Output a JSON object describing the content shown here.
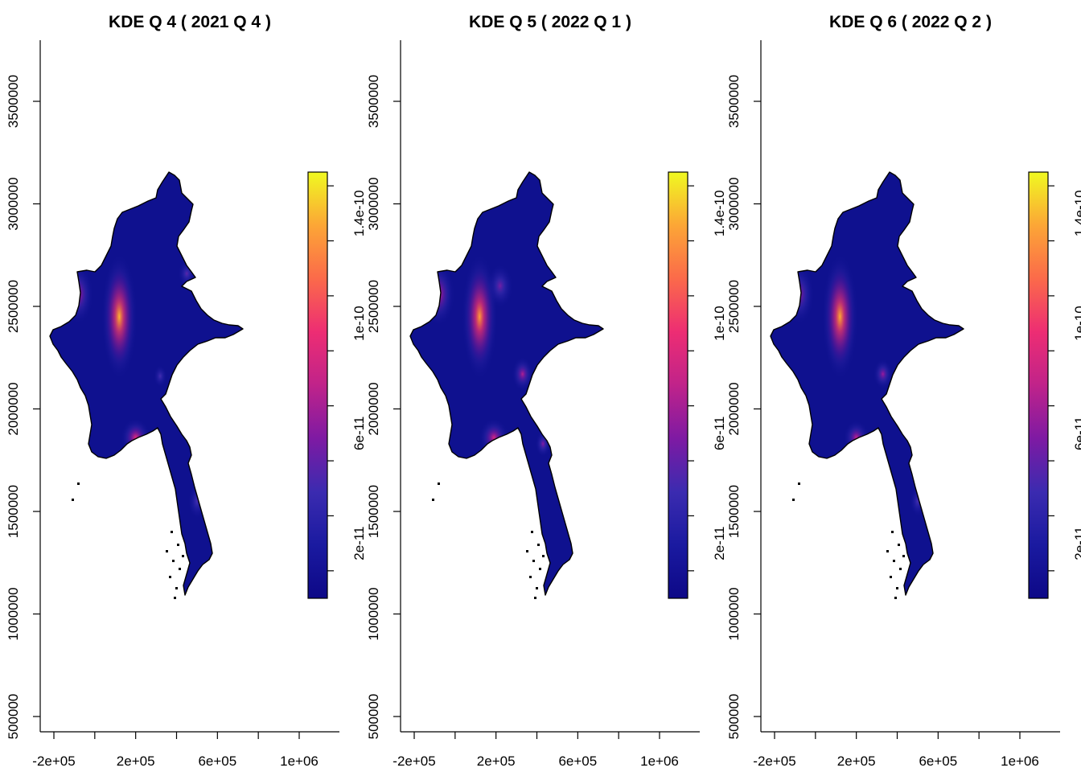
{
  "panels": [
    {
      "title": "KDE Q 4 ( 2021 Q 4 )",
      "hotspots": [
        {
          "label": "central",
          "x": 0.12,
          "y": 2450000,
          "rx": 0.085,
          "ry": 300000,
          "level": 1.0
        },
        {
          "label": "north-west",
          "x": -0.08,
          "y": 2560000,
          "rx": 0.07,
          "ry": 140000,
          "level": 0.45
        },
        {
          "label": "delta",
          "x": 0.2,
          "y": 1860000,
          "rx": 0.07,
          "ry": 90000,
          "level": 0.6
        },
        {
          "label": "east",
          "x": 0.45,
          "y": 2660000,
          "rx": 0.04,
          "ry": 60000,
          "level": 0.25
        },
        {
          "label": "mid",
          "x": 0.32,
          "y": 2160000,
          "rx": 0.03,
          "ry": 50000,
          "level": 0.2
        },
        {
          "label": "south",
          "x": 0.5,
          "y": 1550000,
          "rx": 0.04,
          "ry": 80000,
          "level": 0.2
        }
      ]
    },
    {
      "title": "KDE Q 5 ( 2022 Q 1 )",
      "hotspots": [
        {
          "label": "central",
          "x": 0.12,
          "y": 2450000,
          "rx": 0.085,
          "ry": 300000,
          "level": 0.95
        },
        {
          "label": "north-west",
          "x": -0.08,
          "y": 2560000,
          "rx": 0.075,
          "ry": 150000,
          "level": 0.5
        },
        {
          "label": "north-east",
          "x": 0.22,
          "y": 2600000,
          "rx": 0.06,
          "ry": 100000,
          "level": 0.3
        },
        {
          "label": "delta",
          "x": 0.19,
          "y": 1860000,
          "rx": 0.07,
          "ry": 90000,
          "level": 0.55
        },
        {
          "label": "mid",
          "x": 0.33,
          "y": 2170000,
          "rx": 0.05,
          "ry": 80000,
          "level": 0.45
        },
        {
          "label": "east-mid",
          "x": 0.43,
          "y": 1830000,
          "rx": 0.035,
          "ry": 60000,
          "level": 0.35
        }
      ]
    },
    {
      "title": "KDE Q 6 ( 2022 Q 2 )",
      "hotspots": [
        {
          "label": "central",
          "x": 0.12,
          "y": 2450000,
          "rx": 0.085,
          "ry": 300000,
          "level": 0.98
        },
        {
          "label": "north-west",
          "x": -0.08,
          "y": 2560000,
          "rx": 0.07,
          "ry": 140000,
          "level": 0.4
        },
        {
          "label": "delta",
          "x": 0.2,
          "y": 1860000,
          "rx": 0.06,
          "ry": 80000,
          "level": 0.5
        },
        {
          "label": "mid",
          "x": 0.33,
          "y": 2170000,
          "rx": 0.045,
          "ry": 70000,
          "level": 0.4
        },
        {
          "label": "south",
          "x": 0.5,
          "y": 1550000,
          "rx": 0.035,
          "ry": 70000,
          "level": 0.2
        }
      ]
    }
  ],
  "x_ticks": [
    "-2e+05",
    "2e+05",
    "6e+05",
    "1e+06"
  ],
  "x_tick_values": [
    -200000,
    0,
    200000,
    400000,
    600000,
    800000,
    1000000
  ],
  "x_label_values": [
    -200000,
    200000,
    600000,
    1000000
  ],
  "y_ticks": [
    "500000",
    "1000000",
    "1500000",
    "2000000",
    "2500000",
    "3000000",
    "3500000"
  ],
  "y_tick_values": [
    500000,
    1000000,
    1500000,
    2000000,
    2500000,
    3000000,
    3500000
  ],
  "legend_ticks": [
    "2e-11",
    "6e-11",
    "1e-10",
    "1.4e-10"
  ],
  "legend_tick_values": [
    2e-11,
    6e-11,
    1e-10,
    1.4e-10
  ],
  "legend_range": [
    0,
    1.55e-10
  ],
  "colors": {
    "palette": [
      "#0d0887",
      "#1a1aa0",
      "#3b2bb0",
      "#7e1aa3",
      "#c0238a",
      "#ed2d73",
      "#fb6a4a",
      "#fca636",
      "#f0f921"
    ],
    "land_base": "#0f118f",
    "outline": "#000000"
  }
}
